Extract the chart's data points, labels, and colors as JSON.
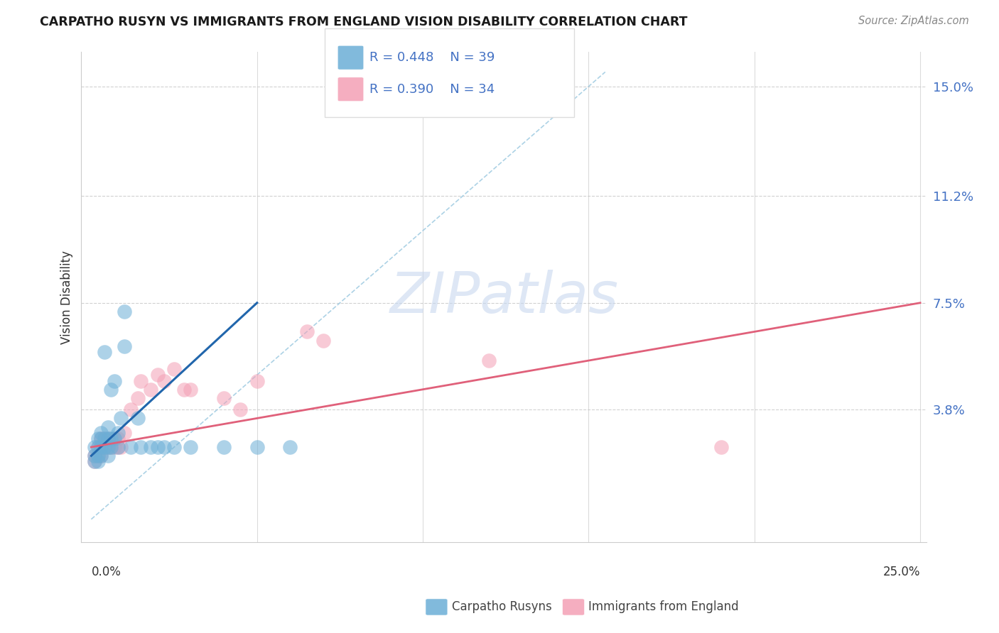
{
  "title": "CARPATHO RUSYN VS IMMIGRANTS FROM ENGLAND VISION DISABILITY CORRELATION CHART",
  "source": "Source: ZipAtlas.com",
  "ylabel": "Vision Disability",
  "xlim": [
    0.0,
    0.25
  ],
  "ylim": [
    0.0,
    0.16
  ],
  "ytick_vals": [
    0.038,
    0.075,
    0.112,
    0.15
  ],
  "ytick_labels": [
    "3.8%",
    "7.5%",
    "11.2%",
    "15.0%"
  ],
  "color_blue": "#6baed6",
  "color_blue_line": "#2166ac",
  "color_pink": "#f4a0b5",
  "color_pink_line": "#e0607a",
  "color_diag": "#9ecae1",
  "watermark_text": "ZIPatlas",
  "blue_x": [
    0.001,
    0.001,
    0.001,
    0.002,
    0.002,
    0.002,
    0.002,
    0.003,
    0.003,
    0.003,
    0.003,
    0.004,
    0.004,
    0.004,
    0.005,
    0.005,
    0.005,
    0.005,
    0.006,
    0.006,
    0.006,
    0.007,
    0.007,
    0.008,
    0.008,
    0.009,
    0.01,
    0.01,
    0.012,
    0.014,
    0.015,
    0.018,
    0.02,
    0.022,
    0.025,
    0.03,
    0.04,
    0.05,
    0.06
  ],
  "blue_y": [
    0.02,
    0.022,
    0.025,
    0.02,
    0.022,
    0.025,
    0.028,
    0.022,
    0.025,
    0.028,
    0.03,
    0.025,
    0.028,
    0.058,
    0.022,
    0.025,
    0.028,
    0.032,
    0.025,
    0.028,
    0.045,
    0.028,
    0.048,
    0.025,
    0.03,
    0.035,
    0.06,
    0.072,
    0.025,
    0.035,
    0.025,
    0.025,
    0.025,
    0.025,
    0.025,
    0.025,
    0.025,
    0.025,
    0.025
  ],
  "pink_x": [
    0.001,
    0.001,
    0.002,
    0.002,
    0.003,
    0.003,
    0.003,
    0.004,
    0.004,
    0.005,
    0.005,
    0.006,
    0.007,
    0.007,
    0.008,
    0.008,
    0.009,
    0.01,
    0.012,
    0.014,
    0.015,
    0.018,
    0.02,
    0.022,
    0.025,
    0.028,
    0.03,
    0.04,
    0.045,
    0.05,
    0.065,
    0.07,
    0.12,
    0.19
  ],
  "pink_y": [
    0.02,
    0.022,
    0.022,
    0.025,
    0.022,
    0.025,
    0.028,
    0.025,
    0.028,
    0.025,
    0.028,
    0.025,
    0.025,
    0.028,
    0.025,
    0.028,
    0.025,
    0.03,
    0.038,
    0.042,
    0.048,
    0.045,
    0.05,
    0.048,
    0.052,
    0.045,
    0.045,
    0.042,
    0.038,
    0.048,
    0.065,
    0.062,
    0.055,
    0.025
  ],
  "blue_line_x": [
    0.0,
    0.05
  ],
  "blue_line_y": [
    0.022,
    0.075
  ],
  "pink_line_x": [
    0.0,
    0.25
  ],
  "pink_line_y": [
    0.025,
    0.075
  ],
  "diag_line_x": [
    0.0,
    0.155
  ],
  "diag_line_y": [
    0.0,
    0.155
  ]
}
